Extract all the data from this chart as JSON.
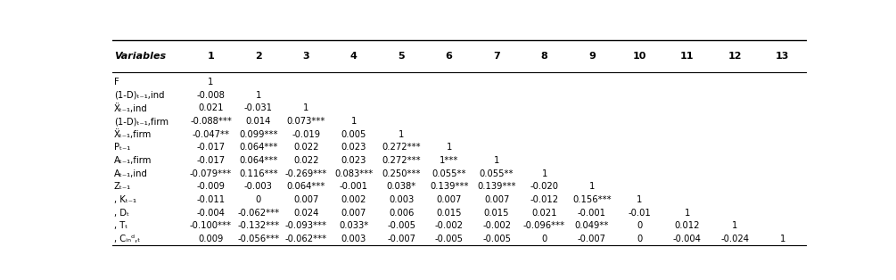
{
  "col_headers": [
    "Variables",
    "1",
    "2",
    "3",
    "4",
    "5",
    "6",
    "7",
    "8",
    "9",
    "10",
    "11",
    "12",
    "13"
  ],
  "row_labels": [
    "F",
    "(1-D)ₜ₋₁,ind",
    "Ẍₜ₋₁,ind",
    "(1-D)ₜ₋₁,firm",
    "Ẍₜ₋₁,firm",
    "Pₜ₋₁",
    "Aₜ₋₁,firm",
    "Aₜ₋₁,ind",
    "Zₜ₋₁",
    ", Kₜ₋₁",
    ", Dₜ",
    ", Tₜ",
    ", Cᵢₙᵈ,ₜ"
  ],
  "data": [
    [
      "1",
      "",
      "",
      "",
      "",
      "",
      "",
      "",
      "",
      "",
      "",
      "",
      ""
    ],
    [
      "-0.008",
      "1",
      "",
      "",
      "",
      "",
      "",
      "",
      "",
      "",
      "",
      "",
      ""
    ],
    [
      "0.021",
      "-0.031",
      "1",
      "",
      "",
      "",
      "",
      "",
      "",
      "",
      "",
      "",
      ""
    ],
    [
      "-0.088***",
      "0.014",
      "0.073***",
      "1",
      "",
      "",
      "",
      "",
      "",
      "",
      "",
      "",
      ""
    ],
    [
      "-0.047**",
      "0.099***",
      "-0.019",
      "0.005",
      "1",
      "",
      "",
      "",
      "",
      "",
      "",
      "",
      ""
    ],
    [
      "-0.017",
      "0.064***",
      "0.022",
      "0.023",
      "0.272***",
      "1",
      "",
      "",
      "",
      "",
      "",
      "",
      ""
    ],
    [
      "-0.017",
      "0.064***",
      "0.022",
      "0.023",
      "0.272***",
      "1***",
      "1",
      "",
      "",
      "",
      "",
      "",
      ""
    ],
    [
      "-0.079***",
      "0.116***",
      "-0.269***",
      "0.083***",
      "0.250***",
      "0.055**",
      "0.055**",
      "1",
      "",
      "",
      "",
      "",
      ""
    ],
    [
      "-0.009",
      "-0.003",
      "0.064***",
      "-0.001",
      "0.038*",
      "0.139***",
      "0.139***",
      "-0.020",
      "1",
      "",
      "",
      "",
      ""
    ],
    [
      "-0.011",
      "0",
      "0.007",
      "0.002",
      "0.003",
      "0.007",
      "0.007",
      "-0.012",
      "0.156***",
      "1",
      "",
      "",
      ""
    ],
    [
      "-0.004",
      "-0.062***",
      "0.024",
      "0.007",
      "0.006",
      "0.015",
      "0.015",
      "0.021",
      "-0.001",
      "-0.01",
      "1",
      "",
      ""
    ],
    [
      "-0.100***",
      "-0.132***",
      "-0.093***",
      "0.033*",
      "-0.005",
      "-0.002",
      "-0.002",
      "-0.096***",
      "0.049**",
      "0",
      "0.012",
      "1",
      ""
    ],
    [
      "0.009",
      "-0.056***",
      "-0.062***",
      "0.003",
      "-0.007",
      "-0.005",
      "-0.005",
      "0",
      "-0.007",
      "0",
      "-0.004",
      "-0.024",
      "1"
    ]
  ],
  "bg_color": "#ffffff",
  "text_color": "#000000",
  "font_size": 7.2,
  "header_font_size": 8.0
}
